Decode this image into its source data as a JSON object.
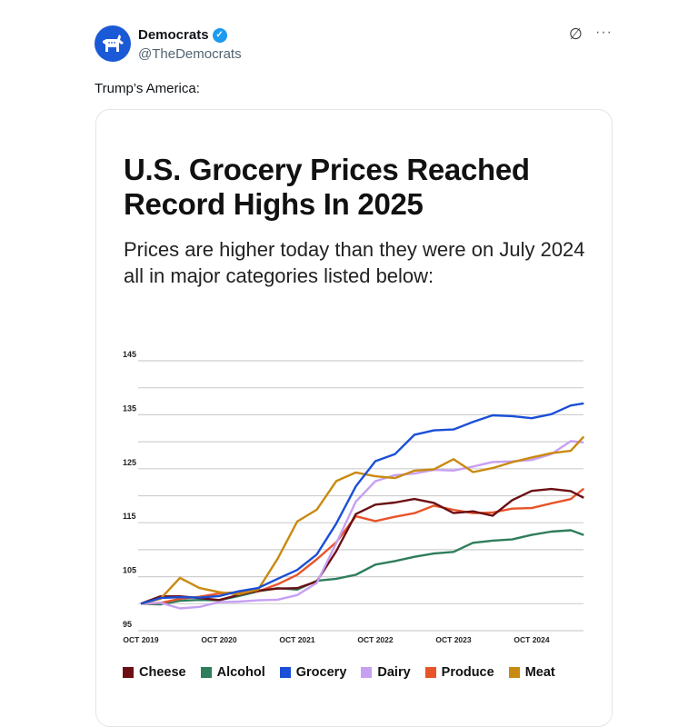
{
  "tweet": {
    "author_name": "Democrats",
    "handle": "@TheDemocrats",
    "text": "Trump’s America:",
    "verified_icon": "verified-badge-icon",
    "grok_icon": "slashed-circle-icon",
    "more_label": "···"
  },
  "chart_data": {
    "type": "line",
    "title": "U.S. Grocery Prices Reached Record Highs In 2025",
    "subtitle": "Prices are higher today than they were on July 2024 all in major categories listed below:",
    "xlabel": "",
    "ylabel": "",
    "ylim": [
      95,
      145
    ],
    "yticks": [
      "145",
      "135",
      "125",
      "115",
      "105",
      "95"
    ],
    "xticks": [
      "OCT 2019",
      "OCT 2020",
      "OCT 2021",
      "OCT 2022",
      "OCT 2023",
      "OCT 2024"
    ],
    "grid": true,
    "legend_position": "bottom",
    "x": [
      "2019-10",
      "2020-01",
      "2020-04",
      "2020-07",
      "2020-10",
      "2021-01",
      "2021-04",
      "2021-07",
      "2021-10",
      "2022-01",
      "2022-04",
      "2022-07",
      "2022-10",
      "2023-01",
      "2023-04",
      "2023-07",
      "2023-10",
      "2024-01",
      "2024-04",
      "2024-07",
      "2024-10",
      "2025-01",
      "2025-04",
      "2025-06"
    ],
    "series": [
      {
        "name": "Cheese",
        "color": "#6b0f14",
        "values": [
          100,
          101,
          101,
          101,
          101,
          102,
          102.5,
          102.5,
          102.5,
          104,
          110,
          117,
          118.5,
          118.5,
          119,
          118.5,
          117,
          117.5,
          116.5,
          119,
          120.5,
          121,
          121,
          120
        ]
      },
      {
        "name": "Alcohol",
        "color": "#2e7d5b",
        "values": [
          100,
          99.5,
          100.5,
          101,
          101,
          101.5,
          102,
          102.5,
          102.5,
          104.5,
          105,
          105.5,
          107,
          107.5,
          108.5,
          109.5,
          110,
          111.5,
          111.5,
          111.5,
          112.5,
          113.5,
          114,
          113
        ]
      },
      {
        "name": "Grocery",
        "color": "#1a4fd6",
        "values": [
          100,
          101,
          101.5,
          101.5,
          101.5,
          102,
          102.5,
          104.5,
          106.5,
          109.5,
          115,
          121.5,
          126,
          127.5,
          131.5,
          132.5,
          132.5,
          133.5,
          134.5,
          134.5,
          134.5,
          135.5,
          137,
          137
        ]
      },
      {
        "name": "Dairy",
        "color": "#c7a0f2",
        "values": [
          100,
          100.5,
          99.5,
          99.5,
          100,
          100,
          100.5,
          101,
          102,
          104,
          111,
          118.5,
          122.5,
          124,
          124.5,
          125,
          124.5,
          125,
          126,
          126.5,
          127,
          128,
          130,
          129.5
        ]
      },
      {
        "name": "Produce",
        "color": "#e8542a",
        "values": [
          100,
          100.5,
          101,
          101,
          101.5,
          102,
          102.5,
          104,
          105.5,
          108,
          111,
          116,
          115.5,
          116.5,
          117,
          118,
          117,
          116.5,
          117,
          118,
          118,
          118.5,
          119,
          121
        ]
      },
      {
        "name": "Meat",
        "color": "#c98a10",
        "values": [
          100,
          101,
          104.5,
          102.5,
          102,
          102,
          103,
          108.5,
          115,
          117,
          122.5,
          124.5,
          124,
          123.5,
          124.5,
          124.5,
          126.5,
          124.5,
          125.5,
          126.5,
          127,
          127.5,
          128,
          131
        ]
      }
    ]
  }
}
